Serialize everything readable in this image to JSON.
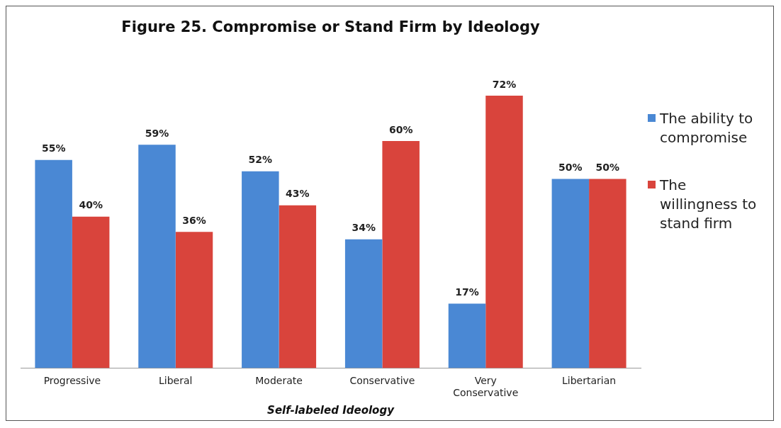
{
  "chart_data": {
    "type": "bar",
    "title": "Figure 25. Compromise or Stand Firm by Ideology",
    "xlabel": "Self-labeled Ideology",
    "categories": [
      "Progressive",
      "Liberal",
      "Moderate",
      "Conservative",
      "Very Conservative",
      "Libertarian"
    ],
    "series": [
      {
        "name": "The ability to compromise",
        "color": "#4a88d4",
        "values": [
          55,
          59,
          52,
          34,
          17,
          50
        ],
        "value_labels": [
          "55%",
          "59%",
          "52%",
          "34%",
          "17%",
          "50%"
        ]
      },
      {
        "name": "The willingness to stand firm",
        "color": "#d9443c",
        "values": [
          40,
          36,
          43,
          60,
          72,
          50
        ],
        "value_labels": [
          "40%",
          "36%",
          "43%",
          "60%",
          "72%",
          "50%"
        ]
      }
    ],
    "legend": "right",
    "grid": false
  }
}
